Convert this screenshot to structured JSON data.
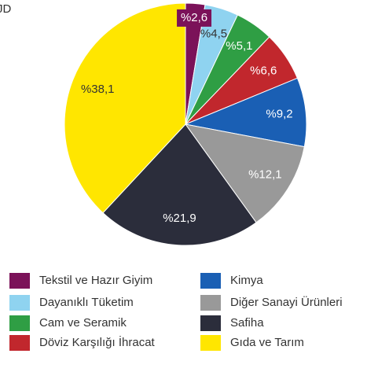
{
  "chart_data": {
    "type": "pie",
    "corner_text": "JD",
    "categories": [
      "Tekstil ve Hazır Giyim",
      "Dayanıklı Tüketim",
      "Cam ve Seramik",
      "Döviz Karşılığı İhracat",
      "Kimya",
      "Diğer Sanayi Ürünleri",
      "Safiha",
      "Gıda ve Tarım"
    ],
    "values": [
      2.6,
      4.5,
      5.1,
      6.6,
      9.2,
      12.1,
      21.9,
      38.1
    ],
    "value_labels": [
      "%2,6",
      "%4,5",
      "%5,1",
      "%6,6",
      "%9,2",
      "%12,1",
      "%21,9",
      "%38,1"
    ],
    "colors": [
      "#7b1259",
      "#8fd3f0",
      "#2f9e44",
      "#c1272d",
      "#1a5fb4",
      "#999999",
      "#2b2d3b",
      "#ffe600"
    ],
    "legend": "bottom"
  }
}
